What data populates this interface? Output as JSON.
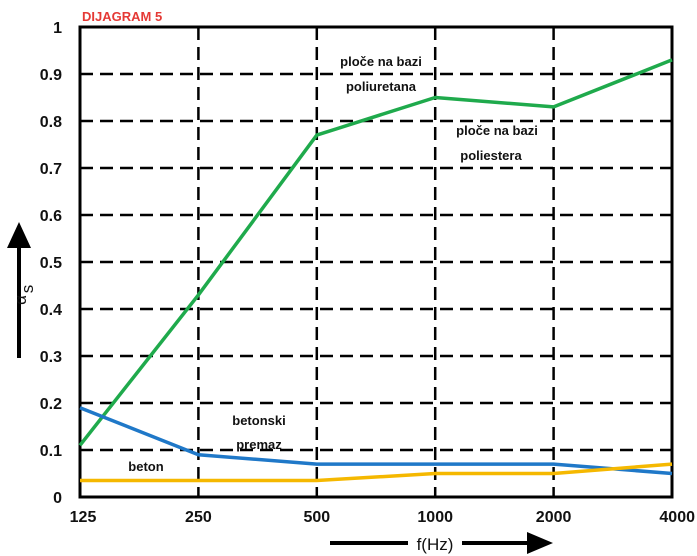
{
  "chart_data": {
    "type": "line",
    "title": "DIJAGRAM 5",
    "xlabel": "f(Hz)",
    "ylabel": "α",
    "ylabel_sub": "s",
    "x": [
      "125",
      "250",
      "500",
      "1000",
      "2000",
      "4000"
    ],
    "yticks": [
      "0",
      "0.1",
      "0.2",
      "0.3",
      "0.4",
      "0.5",
      "0.6",
      "0.7",
      "0.8",
      "0.9",
      "1"
    ],
    "ylim": [
      0,
      1
    ],
    "grid": true,
    "series": [
      {
        "key": "green",
        "color": "#1faa4c",
        "values": [
          0.11,
          0.43,
          0.77,
          0.85,
          0.83,
          0.93
        ]
      },
      {
        "key": "blue",
        "color": "#1f78c8",
        "values": [
          0.19,
          0.09,
          0.07,
          0.07,
          0.07,
          0.05
        ]
      },
      {
        "key": "orange",
        "color": "#f5b800",
        "values": [
          0.035,
          0.035,
          0.035,
          0.05,
          0.05,
          0.07
        ]
      }
    ],
    "annotations": [
      {
        "lines": [
          "ploče na bazi",
          "poliuretana"
        ]
      },
      {
        "lines": [
          "ploče na bazi",
          "poliestera"
        ]
      },
      {
        "lines": [
          "betonski",
          "premaz"
        ]
      },
      {
        "lines": [
          "beton"
        ]
      }
    ]
  }
}
